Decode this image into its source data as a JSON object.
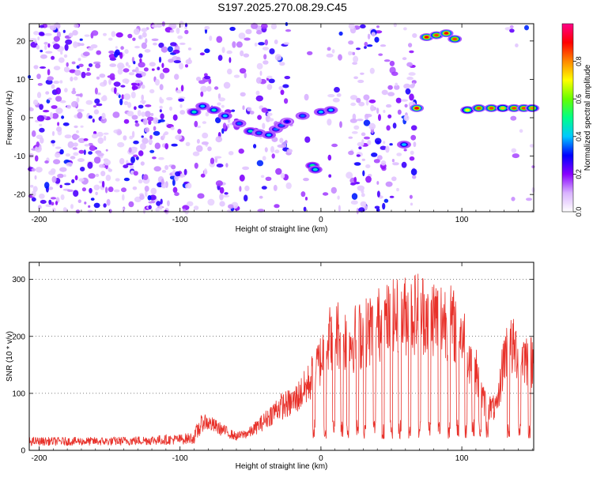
{
  "title": "S197.2025.270.08.29.C45",
  "chart_data": [
    {
      "type": "heatmap",
      "xlabel": "Height of straight line (km)",
      "ylabel": "Frequency (Hz)",
      "xlim": [
        -207,
        151
      ],
      "ylim": [
        -24.5,
        24.5
      ],
      "x_ticks": [
        -200,
        -100,
        0,
        100
      ],
      "x_tick_labels": [
        "-200",
        "-100",
        "0",
        "100"
      ],
      "y_ticks": [
        -20,
        -10,
        0,
        10,
        20
      ],
      "y_tick_labels": [
        "-20",
        "-10",
        "0",
        "10",
        "20"
      ],
      "colorbar": {
        "label": "Normalized spectral amplitude",
        "range": [
          0,
          1
        ],
        "ticks": [
          0.0,
          0.2,
          0.4,
          0.6,
          0.8
        ],
        "tick_labels": [
          "0.0",
          "0.2",
          "0.4",
          "0.6",
          "0.8"
        ],
        "colors": [
          "#ffffff",
          "#d9b3ff",
          "#8800ff",
          "#0000ff",
          "#00c8ff",
          "#00ff88",
          "#66ff00",
          "#ffff00",
          "#ff8800",
          "#ff0000",
          "#ff0088"
        ]
      },
      "ridge": [
        {
          "x": -90,
          "y": 1.5,
          "a": 0.45
        },
        {
          "x": -84,
          "y": 3,
          "a": 0.4
        },
        {
          "x": -76,
          "y": 2,
          "a": 0.45
        },
        {
          "x": -68,
          "y": 0.5,
          "a": 0.4
        },
        {
          "x": -58,
          "y": -1.5,
          "a": 0.35
        },
        {
          "x": -50,
          "y": -3.5,
          "a": 0.45
        },
        {
          "x": -44,
          "y": -4,
          "a": 0.35
        },
        {
          "x": -37,
          "y": -4.5,
          "a": 0.4
        },
        {
          "x": -32,
          "y": -3,
          "a": 0.35
        },
        {
          "x": -28,
          "y": -2,
          "a": 0.35
        },
        {
          "x": -24,
          "y": -1,
          "a": 0.3
        },
        {
          "x": -13,
          "y": 0.5,
          "a": 0.35
        },
        {
          "x": -6,
          "y": -12.5,
          "a": 0.5
        },
        {
          "x": -4,
          "y": -13.5,
          "a": 0.45
        },
        {
          "x": 0,
          "y": 1.5,
          "a": 0.4
        },
        {
          "x": 7,
          "y": 2,
          "a": 0.4
        },
        {
          "x": 59,
          "y": -7,
          "a": 0.4
        },
        {
          "x": 68,
          "y": 2.5,
          "a": 0.9
        },
        {
          "x": 75,
          "y": 21,
          "a": 0.9
        },
        {
          "x": 82,
          "y": 21.5,
          "a": 0.85
        },
        {
          "x": 89,
          "y": 22,
          "a": 0.9
        },
        {
          "x": 95,
          "y": 20.5,
          "a": 0.85
        },
        {
          "x": 104,
          "y": 2,
          "a": 0.7
        },
        {
          "x": 112,
          "y": 2.5,
          "a": 0.85
        },
        {
          "x": 121,
          "y": 2.5,
          "a": 0.85
        },
        {
          "x": 129,
          "y": 2.5,
          "a": 0.75
        },
        {
          "x": 137,
          "y": 2.5,
          "a": 0.85
        },
        {
          "x": 144,
          "y": 2.5,
          "a": 0.85
        },
        {
          "x": 150,
          "y": 2.5,
          "a": 0.8
        }
      ],
      "gaps_km": [
        [
          -93,
          -89
        ],
        [
          -20,
          -14
        ],
        [
          -7,
          -5
        ],
        [
          -5,
          3
        ],
        [
          15,
          20
        ],
        [
          56,
          59
        ],
        [
          67,
          130
        ]
      ]
    },
    {
      "type": "line",
      "xlabel": "Height of straight line (km)",
      "ylabel": "SNR (10 * v/v)",
      "xlim": [
        -207,
        151
      ],
      "ylim": [
        0,
        330
      ],
      "x_ticks": [
        -200,
        -100,
        0,
        100
      ],
      "x_tick_labels": [
        "-200",
        "-100",
        "0",
        "100"
      ],
      "y_ticks": [
        0,
        100,
        200,
        300
      ],
      "y_tick_labels": [
        "0",
        "100",
        "200",
        "300"
      ],
      "series": [
        {
          "name": "SNR",
          "color": "#e8312a",
          "envelope_x": [
            -207,
            -150,
            -100,
            -90,
            -83,
            -80,
            -70,
            -60,
            -50,
            -40,
            -30,
            -20,
            -10,
            0,
            5,
            10,
            20,
            30,
            40,
            50,
            60,
            70,
            80,
            90,
            100,
            105,
            110,
            115,
            120,
            125,
            130,
            135,
            140,
            145,
            151
          ],
          "envelope_y": [
            18,
            18,
            22,
            25,
            65,
            60,
            45,
            30,
            40,
            65,
            95,
            105,
            140,
            200,
            240,
            260,
            240,
            255,
            275,
            285,
            295,
            305,
            295,
            285,
            255,
            215,
            175,
            110,
            95,
            90,
            210,
            225,
            215,
            205,
            190
          ],
          "dips_x": [
            -5,
            3,
            9,
            15,
            19,
            26,
            31,
            38,
            44,
            50,
            56,
            63,
            70,
            77,
            84,
            91,
            97,
            103,
            108,
            113,
            118,
            133,
            141,
            148
          ]
        }
      ]
    }
  ]
}
